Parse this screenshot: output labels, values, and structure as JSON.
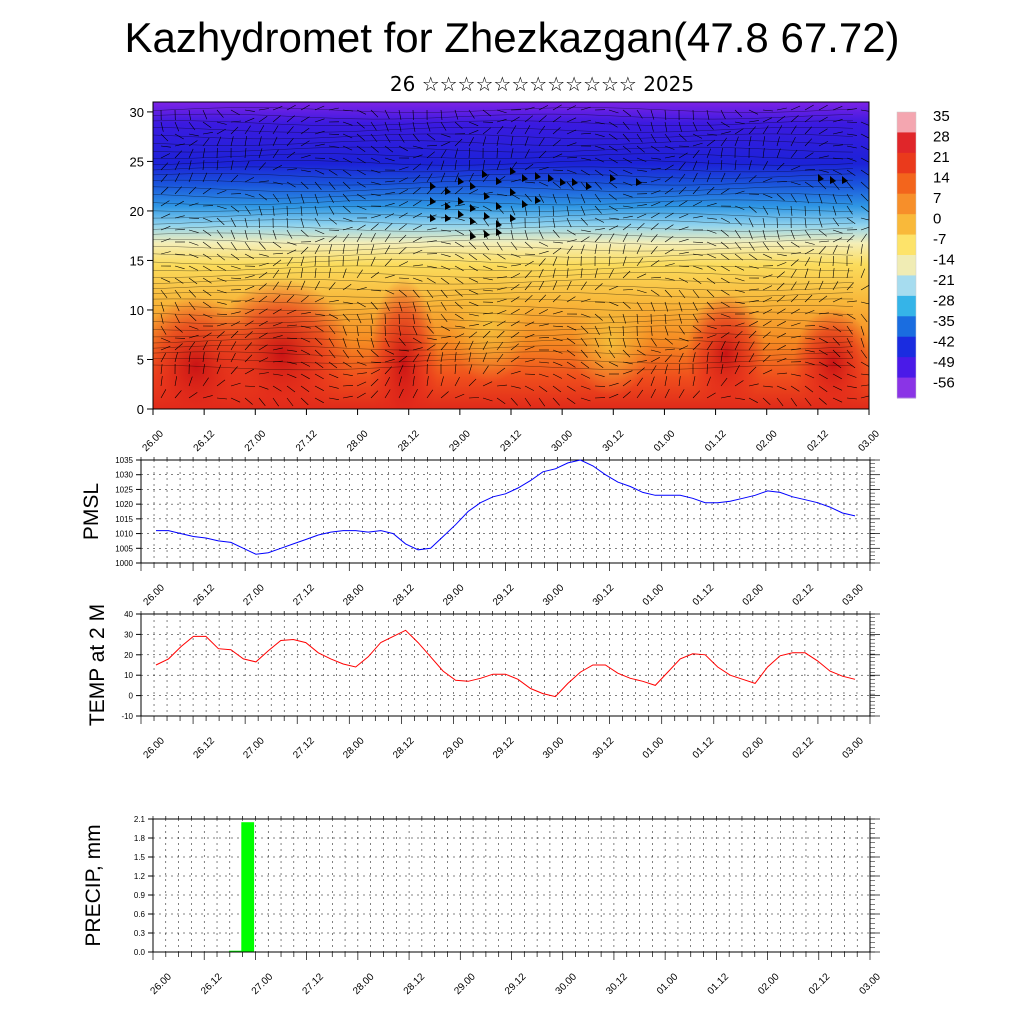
{
  "header": {
    "title": "Kazhydromet for Zhezkazgan(47.8 67.72)",
    "subtitle": "26 ☆☆☆☆☆☆☆☆☆☆☆☆ 2025"
  },
  "colors": {
    "pmsl_line": "#0000ff",
    "temp_line": "#ff0000",
    "precip_bar": "#00ff00",
    "grid": "#000000"
  },
  "chart_data": [
    {
      "type": "heatmap",
      "title": "",
      "x_tick_labels": [
        "26.00",
        "26.12",
        "27.00",
        "27.12",
        "28.00",
        "28.12",
        "29.00",
        "29.12",
        "30.00",
        "30.12",
        "01.00",
        "01.12",
        "02.00",
        "02.12",
        "03.00"
      ],
      "y_ticks": [
        "0",
        "5",
        "10",
        "15",
        "20",
        "25",
        "30"
      ],
      "ylim": [
        0,
        31
      ],
      "colorbar_labels": [
        "35",
        "28",
        "21",
        "14",
        "7",
        "0",
        "-7",
        "-14",
        "-21",
        "-28",
        "-35",
        "-42",
        "-49",
        "-56"
      ],
      "colorbar_colors": [
        "#f4a6b0",
        "#e0262a",
        "#ea3a1c",
        "#f3651c",
        "#f78f2a",
        "#f9b93a",
        "#fde36a",
        "#f0ecb4",
        "#a6dcef",
        "#35b4e8",
        "#1a6de0",
        "#1a2ce0",
        "#4a1ae8",
        "#8a34e6"
      ],
      "overlay": "wind barbs"
    },
    {
      "type": "line",
      "ylabel": "PMSL",
      "ylim": [
        1000,
        1035
      ],
      "y_ticks": [
        "1000",
        "1005",
        "1010",
        "1015",
        "1020",
        "1025",
        "1030",
        "1035"
      ],
      "x_tick_labels": [
        "26.00",
        "26.12",
        "27.00",
        "27.12",
        "28.00",
        "28.12",
        "29.00",
        "29.12",
        "30.00",
        "30.12",
        "01.00",
        "01.12",
        "02.00",
        "02.12",
        "03.00"
      ],
      "x": [
        0,
        3,
        6,
        9,
        12,
        15,
        18,
        21,
        24,
        27,
        30,
        33,
        36,
        39,
        42,
        45,
        48,
        51,
        54,
        57,
        60,
        63,
        66,
        69,
        72,
        75,
        78,
        81,
        84,
        87,
        90,
        93,
        96,
        99,
        102,
        105,
        108,
        111,
        114,
        117,
        120,
        123,
        126,
        129,
        132,
        135,
        138,
        141,
        144,
        147,
        150,
        153,
        156,
        159,
        162,
        165,
        168
      ],
      "series": [
        {
          "values": [
            1011,
            1011,
            1010,
            1009,
            1008.5,
            1007.5,
            1007,
            1005,
            1003,
            1003.5,
            1005,
            1006.5,
            1008,
            1009.5,
            1010.5,
            1011,
            1011,
            1010.5,
            1011,
            1010,
            1006.5,
            1004.5,
            1005,
            1009,
            1013,
            1017.5,
            1020.5,
            1022.5,
            1023.5,
            1025.5,
            1028,
            1031,
            1032,
            1034,
            1035,
            1033,
            1030,
            1027.5,
            1026,
            1024,
            1023,
            1023,
            1023,
            1022,
            1020.5,
            1020.5,
            1021,
            1022,
            1023,
            1024.5,
            1024,
            1022.5,
            1021.5,
            1020.5,
            1019,
            1017,
            1016
          ]
        }
      ]
    },
    {
      "type": "line",
      "ylabel": "TEMP at 2 M",
      "ylim": [
        -10,
        40
      ],
      "y_ticks": [
        "-10",
        "0",
        "10",
        "20",
        "30",
        "40"
      ],
      "x_tick_labels": [
        "26.00",
        "26.12",
        "27.00",
        "27.12",
        "28.00",
        "28.12",
        "29.00",
        "29.12",
        "30.00",
        "30.12",
        "01.00",
        "01.12",
        "02.00",
        "02.12",
        "03.00"
      ],
      "x": [
        0,
        3,
        6,
        9,
        12,
        15,
        18,
        21,
        24,
        27,
        30,
        33,
        36,
        39,
        42,
        45,
        48,
        51,
        54,
        57,
        60,
        63,
        66,
        69,
        72,
        75,
        78,
        81,
        84,
        87,
        90,
        93,
        96,
        99,
        102,
        105,
        108,
        111,
        114,
        117,
        120,
        123,
        126,
        129,
        132,
        135,
        138,
        141,
        144,
        147,
        150,
        153,
        156,
        159,
        162,
        165,
        168
      ],
      "series": [
        {
          "values": [
            15,
            18,
            24,
            29,
            29,
            23,
            22.5,
            18,
            16.5,
            22,
            27,
            27.5,
            26,
            21,
            18,
            15.5,
            14,
            19,
            26,
            29,
            32,
            26,
            19,
            12,
            7.5,
            7,
            8.5,
            10.5,
            10.5,
            8,
            3.5,
            1,
            -0.5,
            6,
            11.5,
            15,
            15,
            11,
            8.5,
            7,
            5,
            11.5,
            18,
            20.5,
            20,
            14,
            10,
            8,
            6,
            14,
            19.5,
            21,
            21,
            17,
            12,
            9.5,
            8
          ]
        }
      ]
    },
    {
      "type": "bar",
      "ylabel": "PRECIP, mm",
      "ylim": [
        0,
        2.1
      ],
      "y_ticks": [
        "0.0",
        "0.3",
        "0.6",
        "0.9",
        "1.2",
        "1.5",
        "1.8",
        "2.1"
      ],
      "x_tick_labels": [
        "26.00",
        "26.12",
        "27.00",
        "27.12",
        "28.00",
        "28.12",
        "29.00",
        "29.12",
        "30.00",
        "30.12",
        "01.00",
        "01.12",
        "02.00",
        "02.12",
        "03.00"
      ],
      "bars": [
        {
          "x": 16.5,
          "value": 0.02
        },
        {
          "x": 19.5,
          "value": 2.05
        }
      ]
    }
  ]
}
